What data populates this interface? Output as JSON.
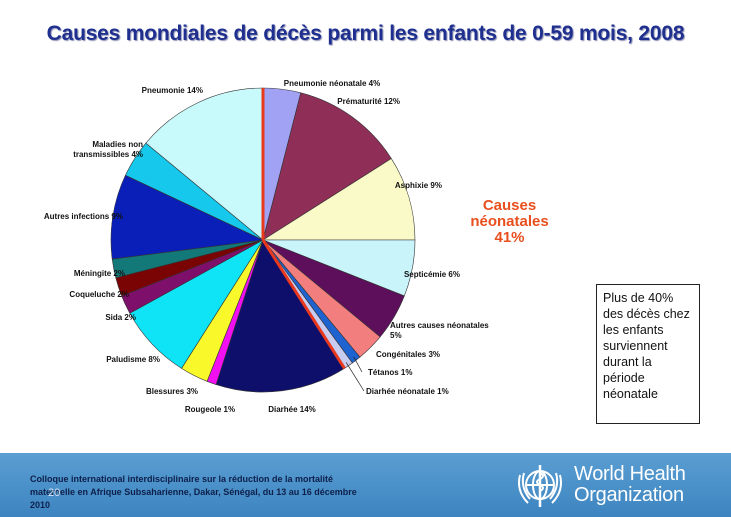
{
  "title": "Causes mondiales de décès parmi les enfants de 0-59 mois, 2008",
  "chart_data": {
    "type": "pie",
    "slices": [
      {
        "label": "Pneumonie néonatale 4%",
        "value": 4,
        "color": "#a2a2f4"
      },
      {
        "label": "Prématurité 12%",
        "value": 12,
        "color": "#8f2f58"
      },
      {
        "label": "Asphixie 9%",
        "value": 9,
        "color": "#fafac8"
      },
      {
        "label": "Septicémie 6%",
        "value": 6,
        "color": "#c9f4fa"
      },
      {
        "label": "Autres causes néonatales 5%",
        "value": 5,
        "color": "#5e0f5c"
      },
      {
        "label": "Congénitales 3%",
        "value": 3,
        "color": "#f27e7e"
      },
      {
        "label": "Tétanos 1%",
        "value": 1,
        "color": "#1f63d0"
      },
      {
        "label": "Diarhée néonatale 1%",
        "value": 1,
        "color": "#c8ccf0"
      },
      {
        "label": "Diarhée 14%",
        "value": 14,
        "color": "#0d0f6a"
      },
      {
        "label": "Rougeole 1%",
        "value": 1,
        "color": "#f20ff2"
      },
      {
        "label": "Blessures 3%",
        "value": 3,
        "color": "#f8f82a"
      },
      {
        "label": "Paludisme 8%",
        "value": 8,
        "color": "#0fe4f6"
      },
      {
        "label": "Sida 2%",
        "value": 2,
        "color": "#7e0f6a"
      },
      {
        "label": "Coqueluche 2%",
        "value": 2,
        "color": "#7a0303"
      },
      {
        "label": "Méningite 2%",
        "value": 2,
        "color": "#137878"
      },
      {
        "label": "Autres infections 9%",
        "value": 9,
        "color": "#0a1fb8"
      },
      {
        "label": "Maladies non transmissibles 4%",
        "value": 4,
        "color": "#16c9ec"
      },
      {
        "label": "Pneumonie 14%",
        "value": 14,
        "color": "#c8fafc"
      }
    ],
    "highlight_color": "#e8381e"
  },
  "callout": {
    "lines": [
      "Causes",
      "néonatales",
      "41%"
    ],
    "color": "#e8501e"
  },
  "note": "Plus de 40% des décès chez les enfants surviennent durant la période néonatale",
  "footer": {
    "conference": "Colloque international interdisciplinaire sur la réduction de la mortalité maternelle en Afrique Subsaharienne, Dakar, Sénégal, du 13 au 16 décembre 2010",
    "slide_number": "20",
    "org_line1": "World Health",
    "org_line2": "Organization"
  }
}
